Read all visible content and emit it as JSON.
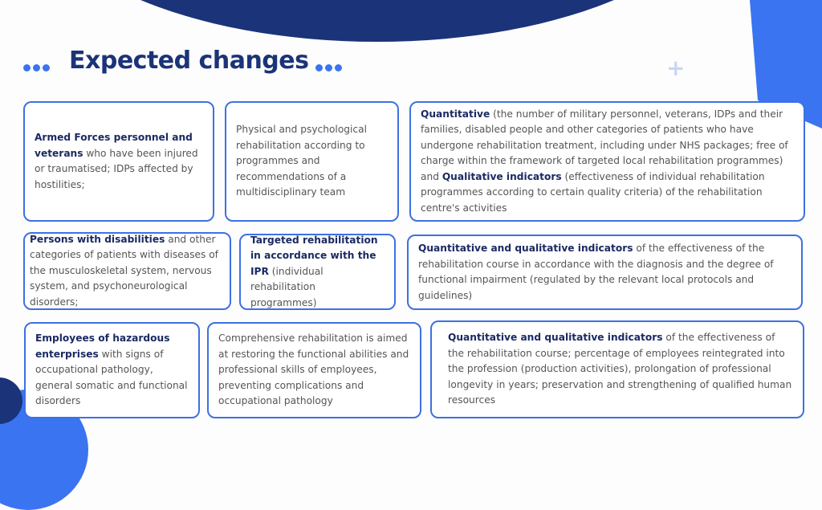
{
  "title": "Expected changes",
  "colors": {
    "navy": "#1b3378",
    "accent": "#3b74f0",
    "border": "#3d71e2"
  },
  "rows": [
    {
      "group": [
        {
          "b1": "Armed Forces personnel and veterans",
          "t1": " who have been injured or traumatised; IDPs affected by hostilities;"
        },
        {
          "t1": "Physical and psychological rehabilitation according to programmes and recommendations of a multidisciplinary team"
        },
        {
          "b1": "Quantitative",
          "t1": " (the number of military personnel, veterans, IDPs and their families, disabled people and other categories of patients who have undergone rehabilitation treatment, including under NHS packages; free of charge within the framework of targeted local rehabilitation programmes) and ",
          "b2": "Qualitative indicators",
          "t2": " (effectiveness of individual rehabilitation programmes according to certain quality criteria) of the rehabilitation centre's activities"
        }
      ]
    },
    {
      "group": [
        {
          "b1": "Persons with disabilities",
          "t1": " and other categories of patients with diseases of the musculoskeletal system, nervous system, and psychoneurological disorders;"
        },
        {
          "b1": "Targeted rehabilitation in accordance with the IPR",
          "t1": " (individual rehabilitation programmes)"
        },
        {
          "b1": "Quantitative and qualitative indicators",
          "t1": " of the effectiveness of the rehabilitation course in accordance with the diagnosis and the degree of functional impairment (regulated by the relevant local protocols and guidelines)"
        }
      ]
    },
    {
      "group": [
        {
          "b1": "Employees of hazardous enterprises",
          "t1": " with signs of occupational pathology, general somatic and functional disorders"
        },
        {
          "t1": "Comprehensive rehabilitation is aimed at restoring the functional abilities and professional skills of employees, preventing complications and occupational pathology"
        },
        {
          "b1": "Quantitative and qualitative indicators",
          "t1": " of the effectiveness of the rehabilitation course; percentage of employees reintegrated into the profession (production activities), prolongation of professional longevity in years; preservation and strengthening of qualified human resources"
        }
      ]
    }
  ]
}
